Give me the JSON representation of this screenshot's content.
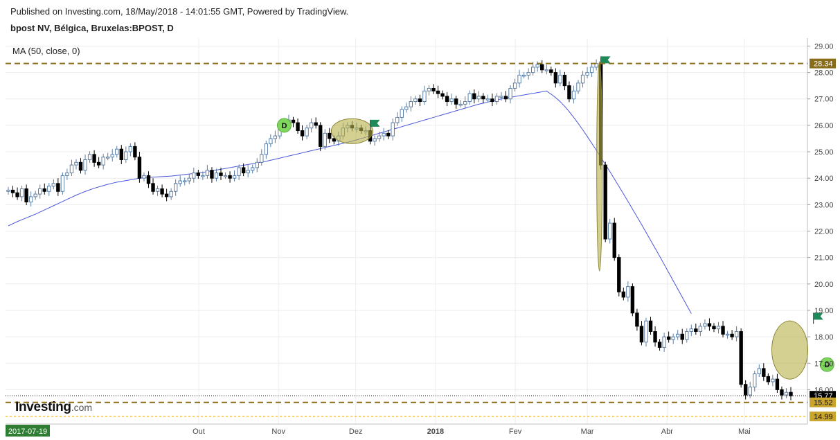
{
  "header": {
    "published": "Published on Investing.com, 18/May/2018 - 14:01:55 GMT, Powered by TradingView.",
    "symbol": "bpost NV, Bélgica, Bruxelas:BPOST, D",
    "indicator": "MA (50, close, 0)"
  },
  "logo": {
    "brand": "Investing",
    "suffix": ".com"
  },
  "colors": {
    "up": "#ffffff",
    "upBorder": "#5a7fa8",
    "down": "#000000",
    "ma": "#4a56d9",
    "levelDash": "#8a6d1a",
    "priceTag": "#000000",
    "supportTag": "#c9a52b",
    "flag": "#1e8a5a",
    "dividend": "#7fd65c",
    "ellipse": "#b5b04a",
    "grid": "#ececec",
    "dateTag": "#2e7d32"
  },
  "chart_data": {
    "type": "candlestick",
    "ylim": [
      14.7,
      29.3
    ],
    "y_ticks": [
      "16.00",
      "17.00",
      "18.00",
      "19.00",
      "20.00",
      "21.00",
      "22.00",
      "23.00",
      "24.00",
      "25.00",
      "26.00",
      "27.00",
      "28.00",
      "29.00"
    ],
    "x_labels": [
      {
        "label": "Out",
        "date": "2017-10-01"
      },
      {
        "label": "Nov",
        "date": "2017-11-01"
      },
      {
        "label": "Dez",
        "date": "2017-12-01"
      },
      {
        "label": "2018",
        "date": "2018-01-01",
        "bold": true
      },
      {
        "label": "Fev",
        "date": "2018-02-01"
      },
      {
        "label": "Mar",
        "date": "2018-03-01"
      },
      {
        "label": "Abr",
        "date": "2018-04-01"
      },
      {
        "label": "Mai",
        "date": "2018-05-01"
      }
    ],
    "start_date_label": "2017-07-19",
    "closes": [
      23.55,
      23.45,
      23.3,
      23.6,
      23.1,
      23.3,
      23.4,
      23.6,
      23.5,
      23.7,
      23.8,
      23.5,
      24.1,
      24.2,
      24.5,
      24.6,
      24.3,
      24.7,
      24.9,
      24.6,
      24.5,
      24.8,
      24.8,
      24.9,
      25.1,
      24.7,
      25.0,
      25.2,
      24.8,
      24.0,
      24.1,
      23.8,
      23.5,
      23.6,
      23.4,
      23.3,
      23.5,
      23.8,
      23.9,
      23.9,
      24.0,
      24.2,
      24.1,
      24.1,
      24.3,
      24.0,
      24.2,
      24.1,
      24.1,
      24.0,
      24.1,
      24.4,
      24.2,
      24.3,
      24.4,
      24.6,
      24.9,
      25.3,
      25.5,
      25.6,
      25.9,
      26.0,
      26.2,
      26.1,
      25.8,
      25.6,
      25.9,
      26.1,
      26.0,
      25.2,
      25.7,
      25.5,
      25.4,
      25.6,
      25.9,
      26.0,
      25.9,
      25.9,
      25.8,
      25.8,
      25.4,
      25.5,
      25.6,
      25.7,
      25.6,
      26.1,
      26.3,
      26.6,
      26.7,
      26.9,
      27.0,
      26.9,
      27.3,
      27.4,
      27.3,
      27.2,
      27.1,
      26.9,
      27.0,
      26.8,
      26.8,
      26.9,
      27.2,
      27.0,
      27.1,
      27.0,
      27.0,
      26.9,
      27.1,
      27.1,
      27.0,
      27.4,
      27.6,
      27.9,
      27.9,
      28.0,
      28.2,
      28.3,
      28.1,
      28.1,
      28.0,
      27.6,
      27.9,
      27.5,
      27.0,
      27.3,
      27.6,
      27.9,
      28.0,
      28.2,
      28.34,
      24.5,
      21.7,
      22.3,
      21.0,
      19.7,
      19.5,
      19.9,
      18.9,
      18.4,
      17.8,
      18.6,
      18.2,
      17.8,
      17.6,
      18.0,
      17.9,
      18.0,
      18.1,
      17.9,
      18.2,
      18.3,
      18.2,
      18.4,
      18.5,
      18.4,
      18.3,
      18.4,
      18.1,
      18.1,
      18.0,
      18.2,
      16.2,
      15.8,
      16.1,
      16.6,
      16.8,
      16.5,
      16.3,
      16.4,
      16.0,
      15.8,
      15.9,
      15.77
    ],
    "ma50": [
      22.2,
      22.28,
      22.36,
      22.43,
      22.5,
      22.57,
      22.64,
      22.72,
      22.8,
      22.88,
      22.96,
      23.04,
      23.12,
      23.2,
      23.28,
      23.36,
      23.43,
      23.5,
      23.56,
      23.62,
      23.67,
      23.72,
      23.77,
      23.81,
      23.85,
      23.88,
      23.91,
      23.94,
      23.97,
      24.0,
      24.02,
      24.03,
      24.04,
      24.05,
      24.06,
      24.07,
      24.08,
      24.1,
      24.12,
      24.14,
      24.16,
      24.18,
      24.2,
      24.22,
      24.25,
      24.28,
      24.31,
      24.34,
      24.37,
      24.4,
      24.43,
      24.46,
      24.49,
      24.52,
      24.55,
      24.58,
      24.61,
      24.64,
      24.68,
      24.72,
      24.76,
      24.8,
      24.84,
      24.88,
      24.92,
      24.96,
      25.0,
      25.04,
      25.08,
      25.12,
      25.16,
      25.2,
      25.24,
      25.28,
      25.32,
      25.36,
      25.4,
      25.45,
      25.5,
      25.55,
      25.6,
      25.65,
      25.7,
      25.75,
      25.8,
      25.85,
      25.9,
      25.95,
      26.0,
      26.05,
      26.1,
      26.15,
      26.2,
      26.25,
      26.3,
      26.35,
      26.4,
      26.45,
      26.5,
      26.55,
      26.6,
      26.65,
      26.7,
      26.75,
      26.8,
      26.84,
      26.88,
      26.92,
      26.96,
      27.0,
      27.03,
      27.06,
      27.09,
      27.12,
      27.15,
      27.18,
      27.21,
      27.24,
      27.27,
      27.3,
      27.18,
      27.05,
      26.9,
      26.72,
      26.52,
      26.3,
      26.07,
      25.83,
      25.58,
      25.32,
      25.06,
      24.79,
      24.52,
      24.25,
      23.97,
      23.69,
      23.41,
      23.12,
      22.83,
      22.54,
      22.25,
      21.95,
      21.65,
      21.35,
      21.05,
      20.74,
      20.43,
      20.12,
      19.81,
      19.5,
      19.19,
      18.88
    ],
    "levels": [
      {
        "value": "28.34",
        "price": 28.34,
        "style": "dashed",
        "tag": "dark"
      },
      {
        "value": "15.77",
        "price": 15.77,
        "style": "dotted",
        "tag": "black"
      },
      {
        "value": "15.52",
        "price": 15.52,
        "style": "dashed",
        "tag": "gold"
      },
      {
        "value": "14.99",
        "price": 14.99,
        "style": "dotted-yellow",
        "tag": "gold"
      }
    ],
    "markers": [
      {
        "type": "dividend",
        "label": "D",
        "index": 61,
        "price": 26.0
      },
      {
        "type": "dividend",
        "label": "D",
        "index": 181,
        "price": 16.95
      },
      {
        "type": "flag",
        "index": 80,
        "price": 26.0
      },
      {
        "type": "flag",
        "index": 131,
        "price": 28.4
      },
      {
        "type": "flag",
        "index": 178,
        "price": 18.7
      }
    ]
  }
}
